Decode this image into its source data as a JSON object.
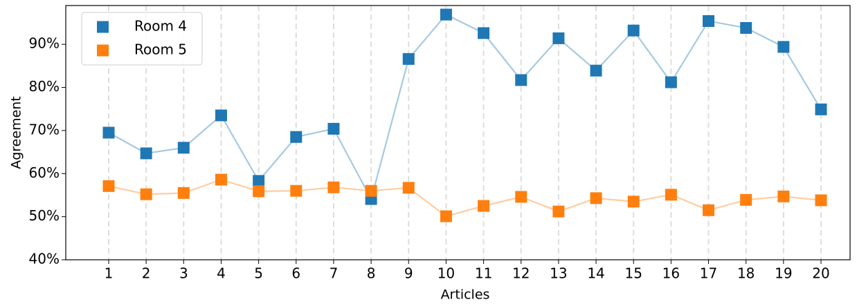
{
  "chart_data": {
    "type": "line",
    "x_label": "Articles",
    "y_label": "Agreement",
    "categories": [
      "1",
      "2",
      "3",
      "4",
      "5",
      "6",
      "7",
      "8",
      "9",
      "10",
      "11",
      "12",
      "13",
      "14",
      "15",
      "16",
      "17",
      "18",
      "19",
      "20"
    ],
    "category_colors": [
      "#1a1a6e",
      "#1a1a6e",
      "#1a1a6e",
      "#1a1a6e",
      "#1a1a6e",
      "#1a1a6e",
      "#1a1a6e",
      "#1a1a6e",
      "#1a1a6e",
      "#1a1a6e",
      "#ff0000",
      "#ff0000",
      "#ff0000",
      "#ff0000",
      "#ff0000",
      "#ff0000",
      "#ff0000",
      "#ff0000",
      "#ff0000",
      "#ff0000"
    ],
    "series": [
      {
        "name": "Room 4",
        "color": "#1f77b4",
        "values": [
          69.5,
          64.7,
          66.0,
          73.5,
          58.3,
          68.5,
          70.4,
          54.1,
          86.6,
          96.9,
          92.6,
          81.7,
          91.4,
          83.9,
          93.2,
          81.2,
          95.4,
          93.8,
          89.4,
          74.9
        ]
      },
      {
        "name": "Room 5",
        "color": "#ff7f0e",
        "values": [
          57.1,
          55.2,
          55.5,
          58.6,
          55.9,
          56.0,
          56.8,
          56.0,
          56.7,
          50.1,
          52.5,
          54.6,
          51.2,
          54.3,
          53.5,
          55.1,
          51.5,
          53.9,
          54.7,
          53.8
        ]
      }
    ],
    "ylim": [
      40,
      99
    ],
    "yticks": [
      {
        "value": 40,
        "label": "40%"
      },
      {
        "value": 50,
        "label": "50%"
      },
      {
        "value": 60,
        "label": "60%"
      },
      {
        "value": 70,
        "label": "70%"
      },
      {
        "value": 80,
        "label": "80%"
      },
      {
        "value": 90,
        "label": "90%"
      }
    ],
    "grid": "x",
    "legend": "upper left"
  }
}
